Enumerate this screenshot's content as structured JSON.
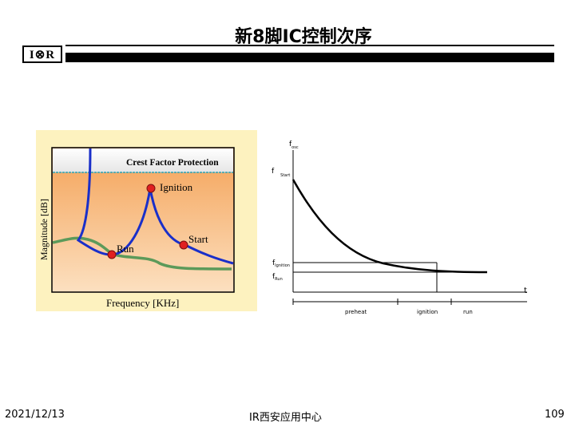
{
  "slide": {
    "title": "新8脚IC控制次序",
    "logo_text": "I⊗R",
    "date": "2021/12/13",
    "footer_center": "IR西安应用中心",
    "page_number": "109"
  },
  "left_diagram": {
    "y_axis_label": "Magnitude [dB]",
    "x_axis_label": "Frequency [KHz]",
    "band_label": "Crest Factor Protection",
    "points": {
      "ignition": "Ignition",
      "start": "Start",
      "run": "Run"
    },
    "colors": {
      "frame_bg": "#fdf2bf",
      "plot_top": "#f4a257",
      "plot_bottom": "#fce0c0",
      "band": "#e6e6e6",
      "band_border": "#29a3b8",
      "blue_curve": "#1a2fc9",
      "green_curve": "#5c9a5a",
      "marker": "#e02020"
    }
  },
  "right_diagram": {
    "y_axis_main": "f",
    "y_axis_main_sub": "osc",
    "f_start": "f",
    "f_start_sub": "Start",
    "f_ignition": "f",
    "f_ignition_sub": "Ignition",
    "f_run": "f",
    "f_run_sub": "Run",
    "t_label": "t",
    "phases": [
      "preheat",
      "ignition",
      "run"
    ]
  }
}
